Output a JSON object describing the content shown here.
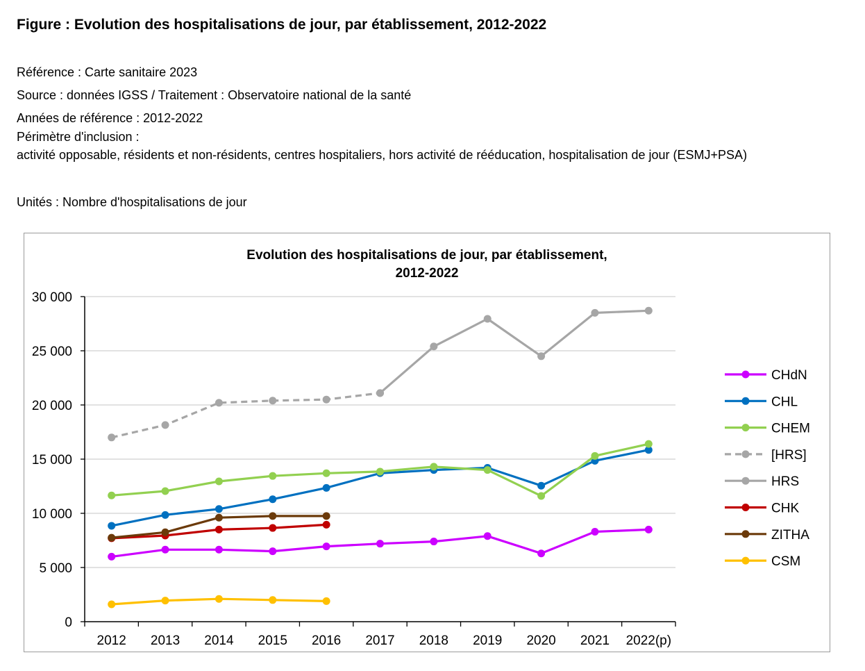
{
  "figure": {
    "title": "Figure : Evolution des hospitalisations de jour, par établissement, 2012-2022",
    "reference": "Référence : Carte sanitaire 2023",
    "source": "Source : données IGSS / Traitement : Observatoire national de la santé",
    "years": "Années de référence : 2012-2022",
    "perimeter_label": "Périmètre d'inclusion :",
    "perimeter_text": "activité opposable, résidents et non-résidents, centres hospitaliers, hors activité de rééducation, hospitalisation de jour (ESMJ+PSA)",
    "units": "Unités : Nombre d'hospitalisations de jour"
  },
  "chart_data": {
    "type": "line",
    "title_line1": "Evolution des hospitalisations de jour, par établissement,",
    "title_line2": "2012-2022",
    "categories": [
      "2012",
      "2013",
      "2014",
      "2015",
      "2016",
      "2017",
      "2018",
      "2019",
      "2020",
      "2021",
      "2022(p)"
    ],
    "ylim": [
      0,
      30000
    ],
    "yticks": [
      0,
      5000,
      10000,
      15000,
      20000,
      25000,
      30000
    ],
    "ytick_labels": [
      "0",
      "5 000",
      "10 000",
      "15 000",
      "20 000",
      "25 000",
      "30 000"
    ],
    "grid": true,
    "legend_position": "right",
    "series": [
      {
        "name": "CHdN",
        "color": "#cc00ff",
        "dashed": false,
        "values": [
          6000,
          6650,
          6650,
          6500,
          6950,
          7200,
          7400,
          7900,
          6300,
          8300,
          8500
        ]
      },
      {
        "name": "CHL",
        "color": "#0070c0",
        "dashed": false,
        "values": [
          8850,
          9850,
          10400,
          11300,
          12350,
          13700,
          14000,
          14200,
          12550,
          14850,
          15850
        ]
      },
      {
        "name": "CHEM",
        "color": "#92d050",
        "dashed": false,
        "values": [
          11650,
          12050,
          12950,
          13450,
          13700,
          13850,
          14300,
          14000,
          11600,
          15300,
          16400
        ]
      },
      {
        "name": "[HRS]",
        "color": "#a6a6a6",
        "dashed": true,
        "values": [
          17000,
          18150,
          20200,
          20400,
          20500,
          21100,
          null,
          null,
          null,
          null,
          null
        ]
      },
      {
        "name": "HRS",
        "color": "#a6a6a6",
        "dashed": false,
        "values": [
          null,
          null,
          null,
          null,
          null,
          21100,
          25400,
          27950,
          24500,
          28500,
          28700
        ]
      },
      {
        "name": "CHK",
        "color": "#c00000",
        "dashed": false,
        "values": [
          7700,
          7950,
          8500,
          8650,
          8950,
          null,
          null,
          null,
          null,
          null,
          null
        ]
      },
      {
        "name": "ZITHA",
        "color": "#6b3a0a",
        "dashed": false,
        "values": [
          7750,
          8250,
          9600,
          9750,
          9750,
          null,
          null,
          null,
          null,
          null,
          null
        ]
      },
      {
        "name": "CSM",
        "color": "#ffc000",
        "dashed": false,
        "values": [
          1600,
          1950,
          2100,
          2000,
          1900,
          null,
          null,
          null,
          null,
          null,
          null
        ]
      }
    ]
  }
}
